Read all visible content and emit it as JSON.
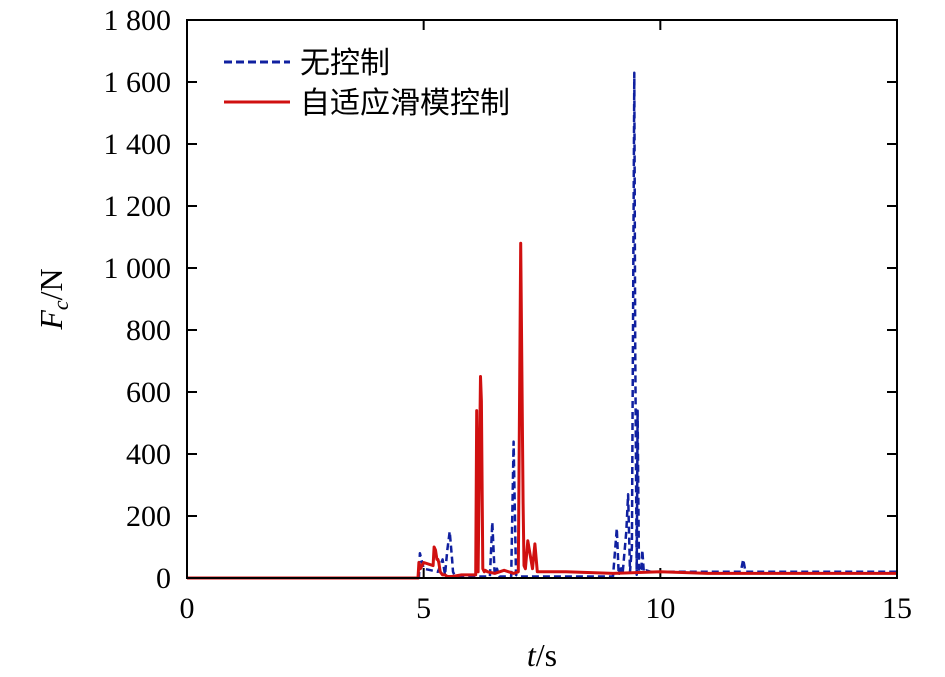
{
  "chart_data": {
    "type": "line",
    "xlabel": {
      "var": "t",
      "unit": "/s"
    },
    "ylabel": {
      "var": "F",
      "sub": "c",
      "unit": "/N"
    },
    "xlim": [
      0,
      15
    ],
    "ylim": [
      0,
      1800
    ],
    "xticks": [
      0,
      5,
      10,
      15
    ],
    "xtick_labels": [
      "0",
      "5",
      "10",
      "15"
    ],
    "yticks": [
      0,
      200,
      400,
      600,
      800,
      1000,
      1200,
      1400,
      1600,
      1800
    ],
    "ytick_labels": [
      "0",
      "200",
      "400",
      "600",
      "800",
      "1 000",
      "1 200",
      "1 400",
      "1 600",
      "1 800"
    ],
    "grid": false,
    "legend_position": "top-left",
    "series": [
      {
        "name": "无控制",
        "color": "#1020a0",
        "style": "dashed",
        "x": [
          0,
          4.9,
          4.92,
          5.0,
          5.3,
          5.4,
          5.45,
          5.5,
          5.55,
          5.6,
          5.62,
          5.65,
          5.7,
          5.9,
          6.4,
          6.45,
          6.5,
          6.55,
          6.6,
          6.85,
          6.9,
          6.95,
          7.0,
          7.3,
          7.5,
          8.0,
          8.5,
          9.0,
          9.08,
          9.12,
          9.16,
          9.2,
          9.28,
          9.32,
          9.36,
          9.4,
          9.45,
          9.47,
          9.5,
          9.52,
          9.55,
          9.6,
          9.62,
          9.65,
          9.7,
          9.8,
          10.0,
          11.0,
          11.7,
          11.75,
          11.8,
          11.85,
          12.0,
          13.0,
          14.0,
          15.0
        ],
        "y": [
          0,
          0,
          80,
          30,
          20,
          60,
          10,
          90,
          150,
          60,
          20,
          10,
          5,
          5,
          5,
          180,
          10,
          30,
          5,
          5,
          440,
          10,
          5,
          5,
          5,
          5,
          5,
          5,
          160,
          10,
          40,
          10,
          150,
          270,
          20,
          100,
          1630,
          760,
          10,
          540,
          20,
          30,
          90,
          20,
          25,
          20,
          20,
          20,
          20,
          60,
          20,
          20,
          20,
          20,
          20,
          20
        ]
      },
      {
        "name": "自适应滑模控制",
        "color": "#d01010",
        "style": "solid",
        "x": [
          0,
          4.88,
          4.9,
          4.93,
          5.0,
          5.2,
          5.22,
          5.25,
          5.28,
          5.3,
          5.32,
          5.35,
          5.4,
          5.45,
          5.5,
          5.6,
          5.8,
          6.0,
          6.1,
          6.12,
          6.15,
          6.2,
          6.22,
          6.25,
          6.28,
          6.3,
          6.35,
          6.5,
          6.7,
          6.9,
          7.0,
          7.05,
          7.1,
          7.12,
          7.15,
          7.2,
          7.3,
          7.35,
          7.4,
          7.5,
          7.8,
          8.0,
          9.0,
          10.0,
          11.0,
          12.0,
          13.0,
          14.0,
          15.0
        ],
        "y": [
          0,
          0,
          50,
          30,
          50,
          40,
          100,
          90,
          60,
          60,
          50,
          20,
          10,
          10,
          5,
          5,
          10,
          10,
          10,
          540,
          20,
          650,
          570,
          30,
          20,
          25,
          20,
          15,
          25,
          15,
          20,
          1080,
          240,
          40,
          30,
          120,
          30,
          110,
          20,
          20,
          20,
          20,
          15,
          20,
          15,
          15,
          15,
          15,
          15
        ]
      }
    ]
  }
}
